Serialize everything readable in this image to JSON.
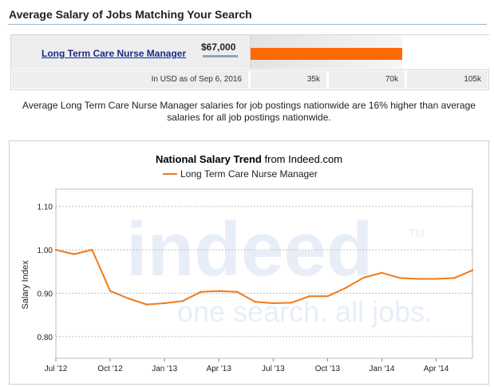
{
  "section": {
    "heading": "Average Salary of Jobs Matching Your Search"
  },
  "salary": {
    "job_title": "Long Term Care Nurse Manager",
    "amount": "$67,000",
    "value": 67000,
    "scale_max": 105000,
    "note_currency": "In USD as of Sep 6, 2016",
    "axis_ticks": [
      "35k",
      "70k",
      "105k"
    ],
    "bar_color": "#ff6a00"
  },
  "comparison_note": "Average Long Term Care Nurse Manager salaries for job postings nationwide are 16% higher than average salaries for all job postings nationwide.",
  "watermark": {
    "brand": "indeed",
    "tm": "TM",
    "tagline": "one search. all jobs."
  },
  "chart_data": {
    "type": "line",
    "title": "National Salary Trend",
    "title_suffix": "from Indeed.com",
    "ylabel": "Salary Index",
    "ylim": [
      0.75,
      1.14
    ],
    "yticks": [
      "1.10",
      "1.00",
      "0.90",
      "0.80"
    ],
    "ytick_values": [
      1.1,
      1.0,
      0.9,
      0.8
    ],
    "xlim": [
      0,
      23
    ],
    "xtick_labels": [
      "Jul '12",
      "Oct '12",
      "Jan '13",
      "Apr '13",
      "Jul '13",
      "Oct '13",
      "Jan '14",
      "Apr '14"
    ],
    "xtick_values": [
      0,
      3,
      6,
      9,
      12,
      15,
      18,
      21
    ],
    "grid": true,
    "legend": "top",
    "series": [
      {
        "name": "Long Term Care Nurse Manager",
        "color": "#f07a1a",
        "x": [
          0,
          1,
          2,
          3,
          4,
          5,
          6,
          7,
          8,
          9,
          10,
          11,
          12,
          13,
          14,
          15,
          16,
          17,
          18,
          19,
          20,
          21,
          22,
          23
        ],
        "values": [
          1.0,
          0.99,
          1.0,
          0.905,
          0.888,
          0.874,
          0.877,
          0.882,
          0.903,
          0.905,
          0.903,
          0.88,
          0.877,
          0.878,
          0.893,
          0.893,
          0.912,
          0.936,
          0.947,
          0.935,
          0.933,
          0.933,
          0.935,
          0.953
        ]
      }
    ]
  }
}
